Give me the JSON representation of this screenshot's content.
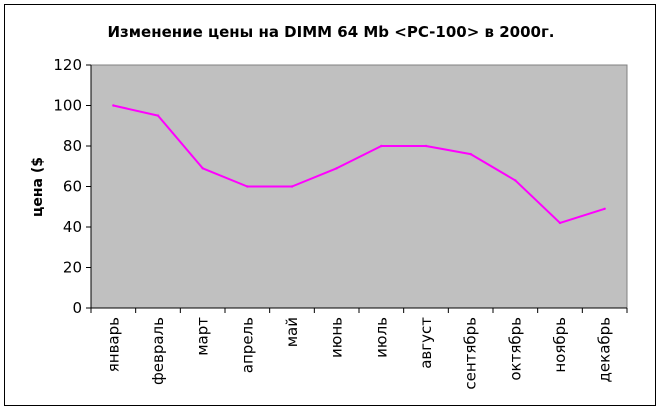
{
  "chart_data": {
    "type": "line",
    "title": "Изменение цены на DIMM 64 Mb <PC-100> в 2000г.",
    "xlabel": "",
    "ylabel": "цена ($",
    "ylim": [
      0,
      120
    ],
    "yticks": [
      0,
      20,
      40,
      60,
      80,
      100,
      120
    ],
    "grid": false,
    "legend": "none",
    "categories": [
      "январь",
      "февраль",
      "март",
      "апрель",
      "май",
      "июнь",
      "июль",
      "август",
      "сентябрь",
      "октябрь",
      "ноябрь",
      "декабрь"
    ],
    "series": [
      {
        "values": [
          100,
          95,
          69,
          60,
          60,
          69,
          80,
          80,
          76,
          63,
          42,
          49
        ],
        "color": "#ff00ff"
      }
    ],
    "plot_background": "#c0c0c0"
  }
}
